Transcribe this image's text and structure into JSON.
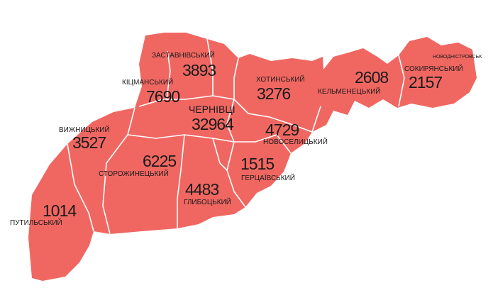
{
  "map": {
    "fill_color": "#f06762",
    "border_color": "#ffffff",
    "districts": [
      {
        "name": "ЗАСТАВНІВСЬКИЙ",
        "value": "3893"
      },
      {
        "name": "КІЦМАНСЬКИЙ",
        "value": "7690"
      },
      {
        "name": "ХОТИНСЬКИЙ",
        "value": "3276"
      },
      {
        "name": "КЕЛЬМЕНЕЦЬКИЙ",
        "value": "2608"
      },
      {
        "name": "СОКИРЯНСЬКИЙ",
        "value": "2157"
      },
      {
        "name": "НОВОДНІСТРОВСЬК",
        "value": ""
      },
      {
        "name": "ЧЕРНІВЦІ",
        "value": "32964"
      },
      {
        "name": "НОВОСЕЛИЦЬКИЙ",
        "value": "4729"
      },
      {
        "name": "ВИЖНИЦЬКИЙ",
        "value": "3527"
      },
      {
        "name": "СТОРОЖИНЕЦЬКИЙ",
        "value": "6225"
      },
      {
        "name": "ГЕРЦАЇВСЬКИЙ",
        "value": "1515"
      },
      {
        "name": "ГЛИБОЦЬКИЙ",
        "value": "4483"
      },
      {
        "name": "ПУТИЛЬСЬКИЙ",
        "value": "1014"
      }
    ]
  }
}
